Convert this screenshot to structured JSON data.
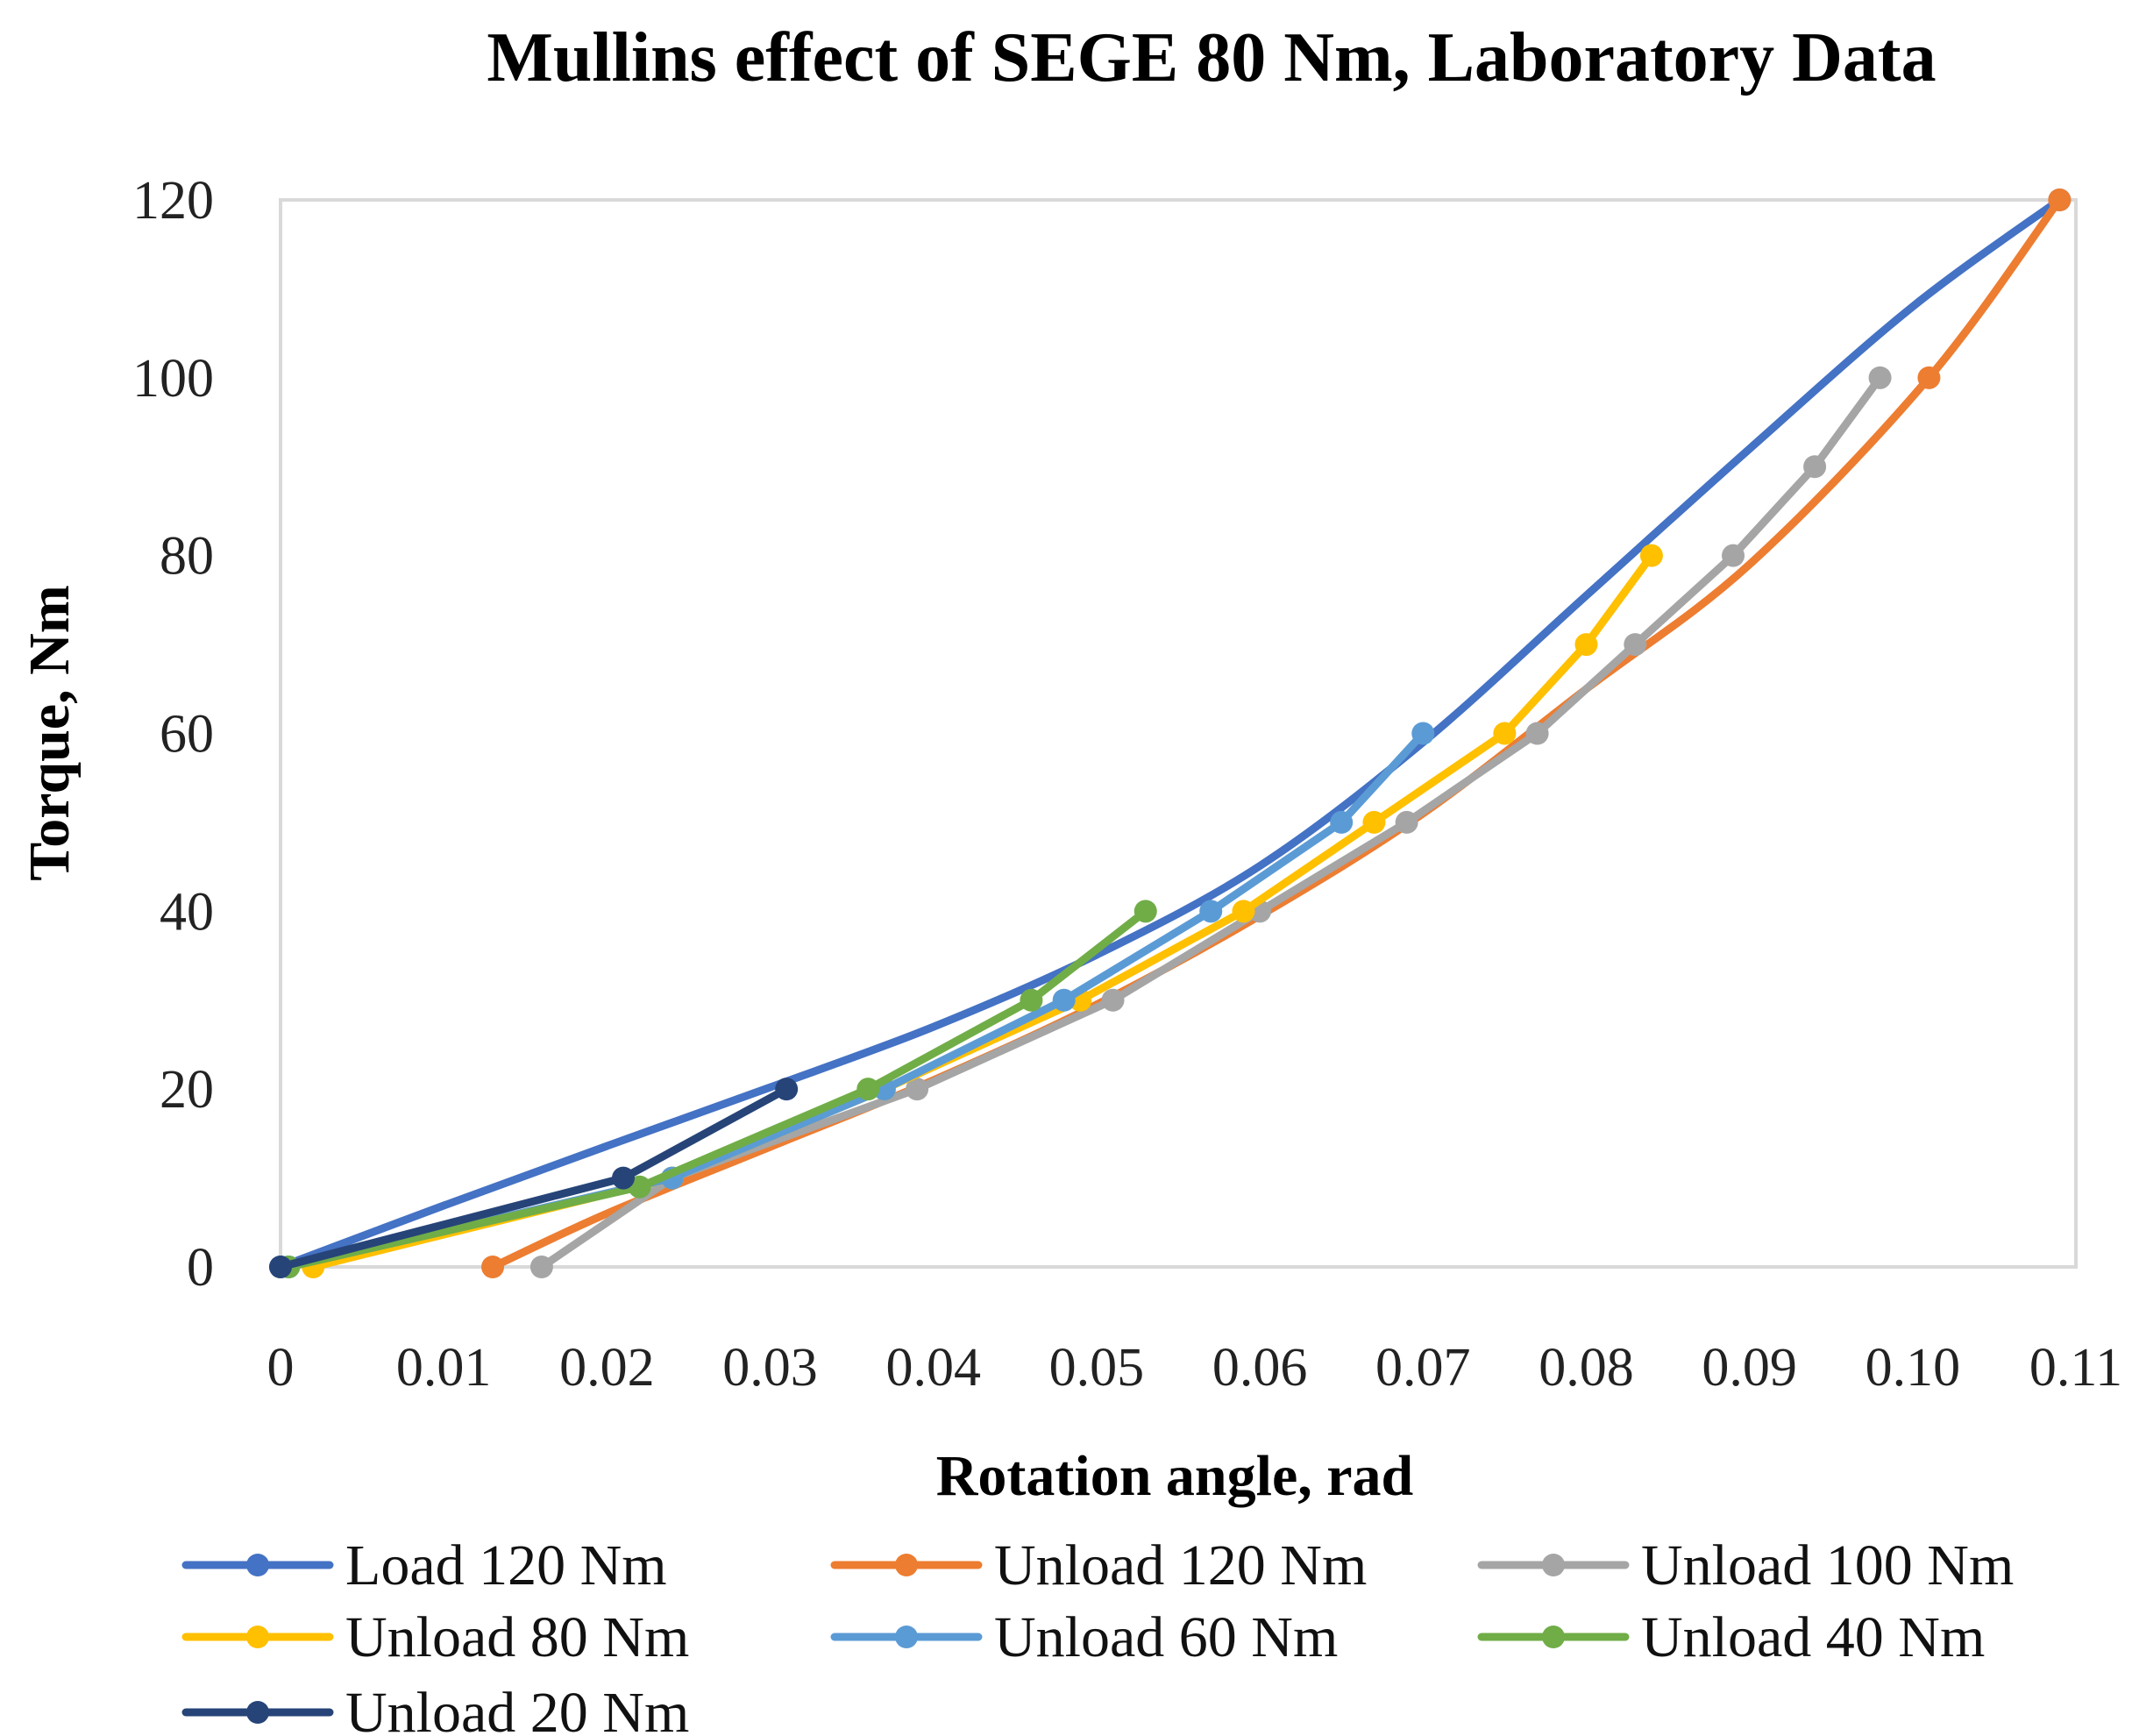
{
  "chart_data": {
    "type": "line",
    "title": "Mullins effect of SEGE 80 Nm, Laboratory Data",
    "xlabel": "Rotation angle, rad",
    "ylabel": "Torque, Nm",
    "xlim": [
      0,
      0.11
    ],
    "ylim": [
      0,
      120
    ],
    "x_ticks": [
      0,
      0.01,
      0.02,
      0.03,
      0.04,
      0.05,
      0.06,
      0.07,
      0.08,
      0.09,
      0.1,
      0.11
    ],
    "x_tick_labels": [
      "0",
      "0.01",
      "0.02",
      "0.03",
      "0.04",
      "0.05",
      "0.06",
      "0.07",
      "0.08",
      "0.09",
      "0.10",
      "0.11"
    ],
    "y_ticks": [
      0,
      20,
      40,
      60,
      80,
      100,
      120
    ],
    "y_tick_labels": [
      "0",
      "20",
      "40",
      "60",
      "80",
      "100",
      "120"
    ],
    "grid": false,
    "legend_position": "bottom",
    "series": [
      {
        "name": "Load 120 Nm",
        "color": "#4472C4",
        "smooth": true,
        "markers_at": [
          0,
          120
        ],
        "points": [
          [
            0,
            0
          ],
          [
            0.01,
            6.9
          ],
          [
            0.02,
            13.6
          ],
          [
            0.03,
            20.2
          ],
          [
            0.04,
            27.0
          ],
          [
            0.05,
            35.1
          ],
          [
            0.06,
            45.1
          ],
          [
            0.07,
            59.0
          ],
          [
            0.08,
            75.5
          ],
          [
            0.09,
            92.0
          ],
          [
            0.1,
            108.0
          ],
          [
            0.109,
            120
          ]
        ]
      },
      {
        "name": "Unload 120 Nm",
        "color": "#ED7D31",
        "smooth": true,
        "markers_at": [
          0,
          100,
          120
        ],
        "points": [
          [
            0.013,
            0
          ],
          [
            0.02,
            6
          ],
          [
            0.03,
            13.5
          ],
          [
            0.04,
            21
          ],
          [
            0.05,
            29.5
          ],
          [
            0.06,
            39.5
          ],
          [
            0.07,
            51
          ],
          [
            0.08,
            65
          ],
          [
            0.09,
            79
          ],
          [
            0.101,
            100
          ],
          [
            0.109,
            120
          ]
        ]
      },
      {
        "name": "Unload 100 Nm",
        "color": "#A5A5A5",
        "points": [
          [
            0.016,
            0
          ],
          [
            0.024,
            10
          ],
          [
            0.039,
            20
          ],
          [
            0.051,
            30
          ],
          [
            0.06,
            40
          ],
          [
            0.069,
            50
          ],
          [
            0.077,
            60
          ],
          [
            0.083,
            70
          ],
          [
            0.089,
            80
          ],
          [
            0.094,
            90
          ],
          [
            0.098,
            100
          ]
        ]
      },
      {
        "name": "Unload 80 Nm",
        "color": "#FFC000",
        "points": [
          [
            0.002,
            0
          ],
          [
            0.024,
            10
          ],
          [
            0.037,
            20
          ],
          [
            0.049,
            30
          ],
          [
            0.059,
            40
          ],
          [
            0.067,
            50
          ],
          [
            0.075,
            60
          ],
          [
            0.08,
            70
          ],
          [
            0.084,
            80
          ]
        ]
      },
      {
        "name": "Unload 60 Nm",
        "color": "#5B9BD5",
        "points": [
          [
            0.0005,
            0
          ],
          [
            0.024,
            10
          ],
          [
            0.037,
            20
          ],
          [
            0.048,
            30
          ],
          [
            0.057,
            40
          ],
          [
            0.065,
            50
          ],
          [
            0.07,
            60
          ]
        ]
      },
      {
        "name": "Unload 40 Nm",
        "color": "#70AD47",
        "points": [
          [
            0.0005,
            0
          ],
          [
            0.022,
            9
          ],
          [
            0.036,
            20
          ],
          [
            0.046,
            30
          ],
          [
            0.053,
            40
          ]
        ]
      },
      {
        "name": "Unload 20 Nm",
        "color": "#264478",
        "points": [
          [
            0,
            0
          ],
          [
            0.021,
            10
          ],
          [
            0.031,
            20
          ]
        ]
      }
    ]
  }
}
